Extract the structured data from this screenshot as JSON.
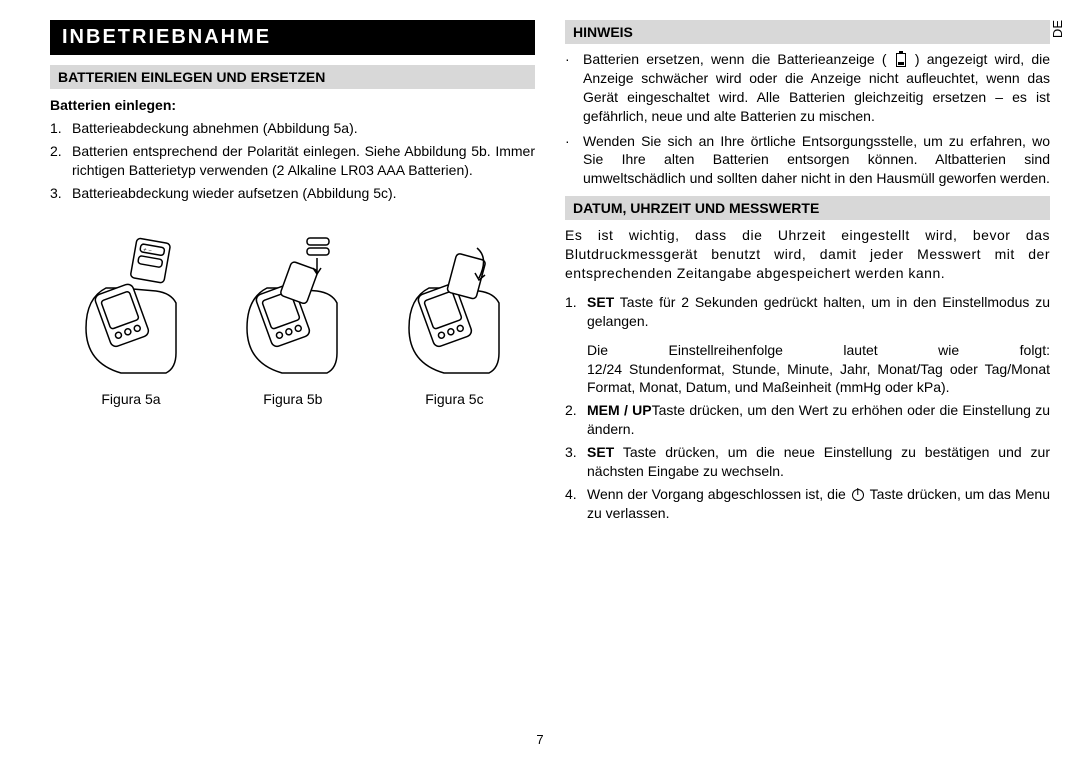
{
  "lang_tag": "DE",
  "page_number": "7",
  "left": {
    "banner": "INBETRIEBNAHME",
    "sub1": "BATTERIEN EINLEGEN UND ERSETZEN",
    "heading1": "Batterien einlegen:",
    "list1": [
      "Batterieabdeckung abnehmen (Abbildung 5a).",
      "Batterien entsprechend der Polarität einlegen. Siehe Abbildung 5b. Immer richtigen Batterietyp verwenden (2 Alkaline LR03 AAA Batterien).",
      "Batterieabdeckung wieder aufsetzen (Abbildung 5c)."
    ],
    "figcaps": [
      "Figura 5a",
      "Figura 5b",
      "Figura 5c"
    ]
  },
  "right": {
    "sub1": "HINWEIS",
    "bullets": [
      "Batterien ersetzen, wenn die Batterieanzeige ( __BAT__ ) angezeigt wird, die Anzeige schwächer wird oder die Anzeige nicht aufleuchtet, wenn das Gerät eingeschaltet wird. Alle Batterien gleichzeitig ersetzen – es ist gefährlich, neue und alte Batterien zu mischen.",
      "Wenden Sie sich an Ihre örtliche Entsorgungsstelle, um zu erfahren, wo Sie Ihre alten Batterien entsorgen können. Altbatterien sind umweltschädlich und sollten daher nicht in den Hausmüll geworfen werden."
    ],
    "sub2": "DATUM, UHRZEIT UND MESSWERTE",
    "para1": "Es ist wichtig, dass die Uhrzeit eingestellt wird, bevor das Blutdruckmessgerät benutzt wird, damit jeder Messwert mit der entsprechenden Zeitangabe abgespeichert werden kann.",
    "steps": [
      {
        "pre": "SET",
        "text": " Taste für 2 Sekunden gedrückt halten, um in den Einstellmodus zu gelangen.",
        "tail_lead": "Die Einstellreihenfolge lautet wie folgt:",
        "tail": "12/24 Stundenformat, Stunde, Minute, Jahr, Monat/Tag oder Tag/Monat Format, Monat, Datum, und Maßeinheit (mmHg oder kPa)."
      },
      {
        "pre": "MEM / UP",
        "text": "Taste drücken, um den Wert zu erhöhen oder die Einstellung zu ändern."
      },
      {
        "pre": "SET",
        "text": " Taste drücken, um die neue Einstellung zu bestätigen und zur nächsten Eingabe zu wechseln."
      },
      {
        "pre": "",
        "text": "Wenn der Vorgang abgeschlossen ist, die __PWR__ Taste drücken, um das Menu zu verlassen."
      }
    ]
  }
}
